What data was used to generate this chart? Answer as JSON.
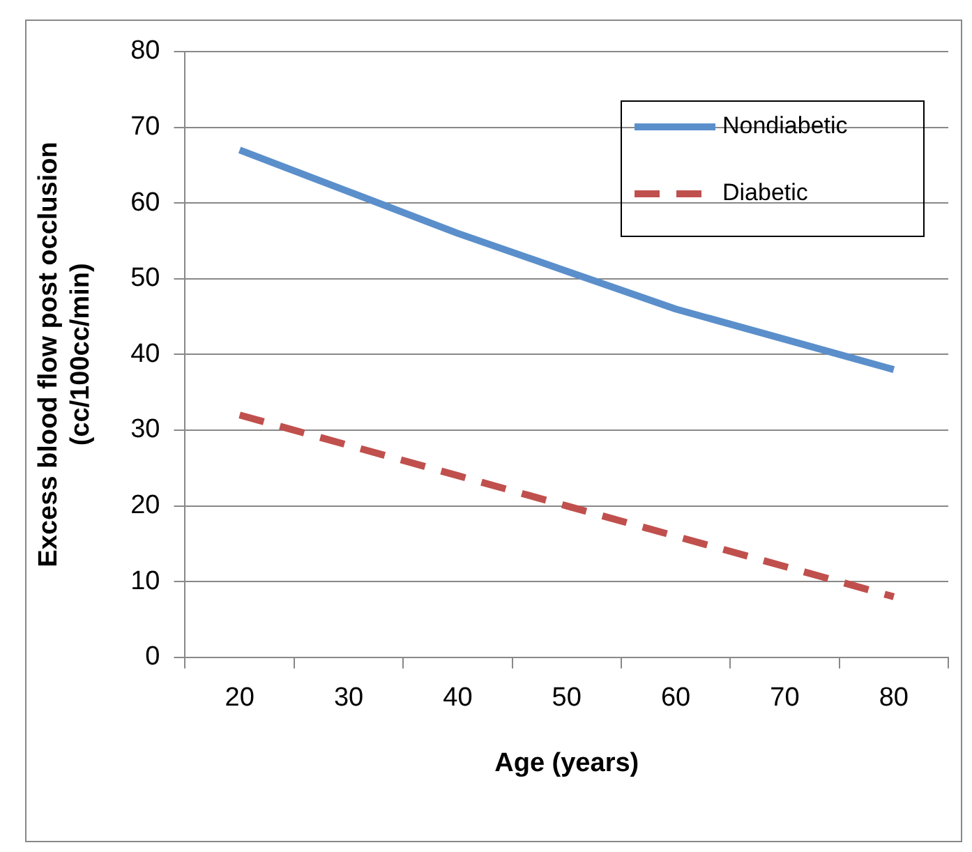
{
  "chart_data": {
    "type": "line",
    "xlabel": "Age (years)",
    "ylabel": "Excess blood flow post occlusion\n(cc/100cc/min)",
    "categories": [
      "20",
      "30",
      "40",
      "50",
      "60",
      "70",
      "80"
    ],
    "series": [
      {
        "name": "Nondiabetic",
        "color": "#5b8fcb",
        "line_style": "solid",
        "values": [
          67,
          61.5,
          56,
          51,
          46,
          42,
          38
        ]
      },
      {
        "name": "Diabetic",
        "color": "#c0504d",
        "line_style": "dashed",
        "values": [
          32,
          28,
          24,
          20,
          16,
          12,
          8
        ]
      }
    ],
    "ylim": [
      0,
      80
    ],
    "yticks": [
      0,
      10,
      20,
      30,
      40,
      50,
      60,
      70,
      80
    ],
    "grid": "y",
    "legend": "top right",
    "marker": "none"
  }
}
